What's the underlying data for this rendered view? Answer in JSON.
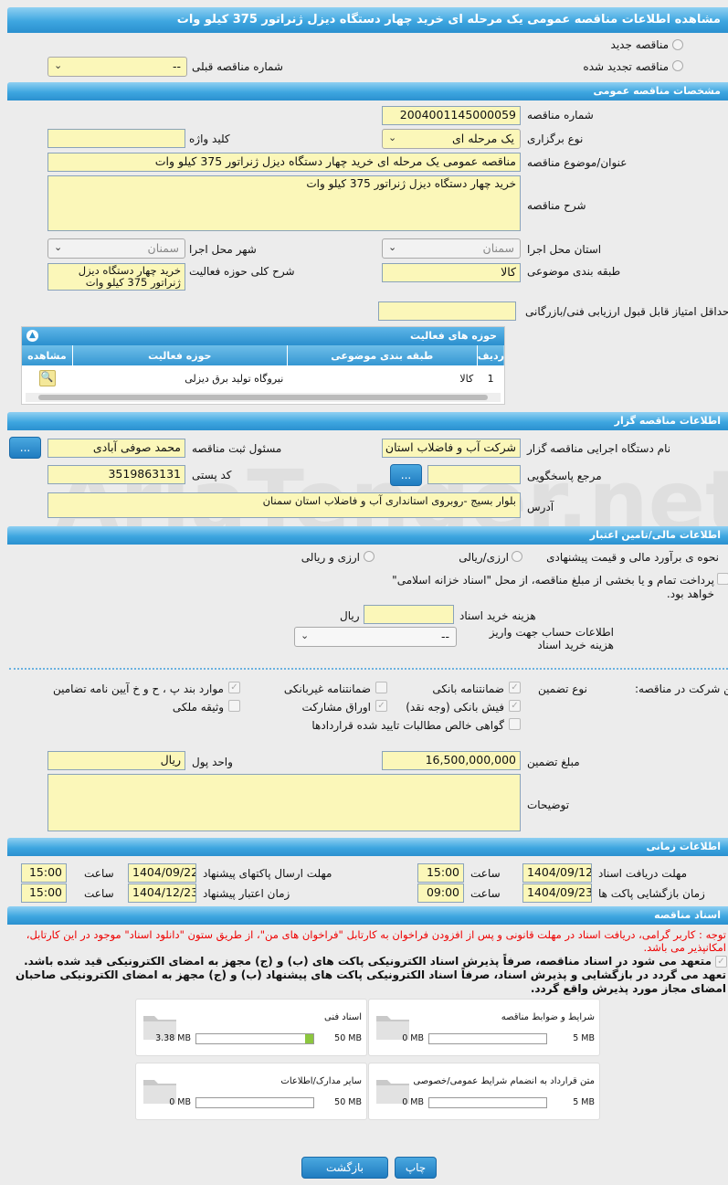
{
  "page_title": "مشاهده اطلاعات مناقصه عمومی یک مرحله ای خرید چهار دستگاه دیزل ژنراتور 375 کیلو وات",
  "watermark": "AriaTender.net",
  "top": {
    "radio_new": "مناقصه جدید",
    "radio_renewed": "مناقصه تجدید شده",
    "prev_number_label": "شماره مناقصه قبلی",
    "prev_number_value": "--"
  },
  "general": {
    "header": "مشخصات مناقصه عمومی",
    "number_label": "شماره مناقصه",
    "number": "2004001145000059",
    "type_label": "نوع برگزاری",
    "type": "یک مرحله ای",
    "keyword_label": "کلید واژه",
    "keyword": "",
    "subject_label": "عنوان/موضوع مناقصه",
    "subject": "مناقصه عمومی یک مرحله ای خرید چهار دستگاه دیزل ژنراتور 375 کیلو وات",
    "desc_label": "شرح مناقصه",
    "desc": "خرید چهار دستگاه دیزل ژنراتور 375 کیلو وات",
    "province_label": "استان محل اجرا",
    "province": "سمنان",
    "city_label": "شهر محل اجرا",
    "city": "سمنان",
    "category_label": "طبقه بندی موضوعی",
    "category": "کالا",
    "scope_label": "شرح کلی حوزه فعالیت",
    "scope": "خرید چهار دستگاه دیزل ژنراتور 375 کیلو وات",
    "min_score_label": "حداقل امتیاز قابل قبول ارزیابی فنی/بازرگانی",
    "min_score": ""
  },
  "activities": {
    "header": "حوزه های فعالیت",
    "columns": [
      "ردیف",
      "طبقه بندی موضوعی",
      "حوزه فعالیت",
      "مشاهده"
    ],
    "rows": [
      {
        "index": "1",
        "category": "کالا",
        "field": "نیروگاه تولید برق دیزلی"
      }
    ]
  },
  "organizer": {
    "header": "اطلاعات مناقصه گزار",
    "org_label": "نام دستگاه اجرایی مناقصه گزار",
    "org": "شرکت آب و فاضلاب استان",
    "resp_label": "مسئول ثبت مناقصه",
    "resp": "محمد صوفی آبادی",
    "ref_label": "مرجع پاسخگویی",
    "ref": "",
    "postal_label": "کد پستی",
    "postal": "3519863131",
    "address_label": "آدرس",
    "address": "بلوار بسیج -روبروی استانداری آب و فاضلاب استان سمنان",
    "more": "..."
  },
  "finance": {
    "header": "اطلاعات مالی/تامین اعتبار",
    "estimate_label": "نحوه ی برآورد مالی و قیمت پیشنهادی",
    "opt1": "ارزی/ریالی",
    "opt2": "ارزی و ریالی",
    "treasury": "پرداخت تمام و یا بخشی از مبلغ مناقصه، از محل \"اسناد خزانه اسلامی\" خواهد بود.",
    "doc_fee_label": "هزینه خرید اسناد",
    "doc_fee": "",
    "rial": "ریال",
    "account_label": "اطلاعات حساب جهت واریز هزینه خرید اسناد",
    "account": "--"
  },
  "guarantee": {
    "label": "تضمین شرکت در مناقصه:",
    "type_label": "نوع تضمین",
    "items": [
      {
        "label": "ضمانتنامه بانکی",
        "checked": true
      },
      {
        "label": "ضمانتنامه غیربانکی",
        "checked": false
      },
      {
        "label": "موارد بند پ ، ح و خ آیین نامه تضامین",
        "checked": true
      },
      {
        "label": "فیش بانکی (وجه نقد)",
        "checked": true
      },
      {
        "label": "اوراق مشارکت",
        "checked": true
      },
      {
        "label": "وثیقه ملکی",
        "checked": false
      },
      {
        "label": "گواهی خالص مطالبات تایید شده قراردادها",
        "checked": false
      }
    ],
    "amount_label": "مبلغ تضمین",
    "amount": "16,500,000,000",
    "currency_label": "واحد پول",
    "currency": "ریال",
    "notes_label": "توضیحات",
    "notes": ""
  },
  "timing": {
    "header": "اطلاعات زمانی",
    "doc_deadline_label": "مهلت دریافت اسناد",
    "doc_deadline": "1404/09/12",
    "doc_time": "15:00",
    "send_label": "مهلت ارسال پاکتهای پیشنهاد",
    "send_date": "1404/09/22",
    "send_time": "15:00",
    "open_label": "زمان بازگشایی پاکت ها",
    "open_date": "1404/09/23",
    "open_time": "09:00",
    "valid_label": "زمان اعتبار پیشنهاد",
    "valid_date": "1404/12/23",
    "valid_time": "15:00",
    "time_label": "ساعت"
  },
  "documents": {
    "header": "اسناد مناقصه",
    "notice": "توجه : کاربر گرامی، دریافت اسناد در مهلت قانونی و پس از افزودن فراخوان به کارتابل \"فراخوان های من\"، از طریق ستون \"دانلود اسناد\" موجود در این کارتابل، امکانپذیر می باشد.",
    "commitment": "متعهد می شود در اسناد مناقصه، صرفاً پذیرش اسناد الکترونیکی پاکت های (ب) و (ج) مجهز به امضای الکترونیکی قید شده باشد. تعهد می گردد در بازگشایی و پذیرش اسناد، صرفاً اسناد الکترونیکی پاکت های پیشنهاد (ب) و (ج) مجهز به امضای الکترونیکی صاحبان امضای مجاز مورد پذیرش واقع گردد.",
    "files": [
      {
        "name": "شرایط و ضوابط مناقصه",
        "current": "0 MB",
        "max": "5 MB",
        "fill": 0
      },
      {
        "name": "اسناد فنی",
        "current": "3.38 MB",
        "max": "50 MB",
        "fill": 6.76
      },
      {
        "name": "متن قرارداد به انضمام شرایط عمومی/خصوصی",
        "current": "0 MB",
        "max": "5 MB",
        "fill": 0
      },
      {
        "name": "سایر مدارک/اطلاعات",
        "current": "0 MB",
        "max": "50 MB",
        "fill": 0
      }
    ]
  },
  "buttons": {
    "back": "بازگشت",
    "print": "چاپ"
  }
}
